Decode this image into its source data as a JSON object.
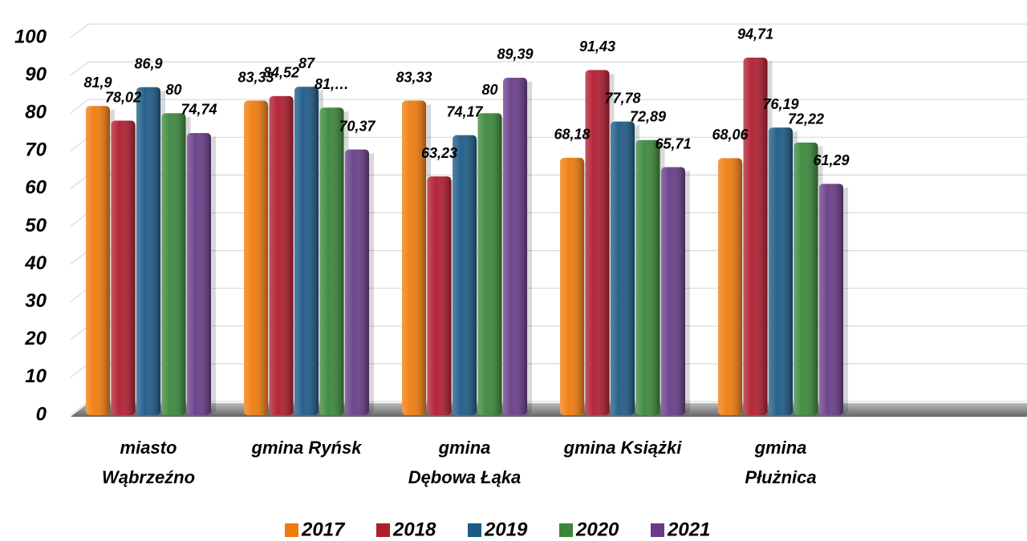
{
  "chart_data": {
    "type": "bar",
    "categories": [
      [
        "miasto",
        "Wąbrzeźno"
      ],
      [
        "gmina Ryńsk"
      ],
      [
        "gmina",
        "Dębowa Łąka"
      ],
      [
        "gmina Książki"
      ],
      [
        "gmina",
        "Płużnica"
      ]
    ],
    "series": [
      {
        "name": "2017",
        "color": "#f07b0c",
        "values": [
          81.9,
          83.33,
          83.33,
          68.18,
          68.06
        ],
        "value_labels": [
          "81,9",
          "83,33",
          "83,33",
          "68,18",
          "68,06"
        ]
      },
      {
        "name": "2018",
        "color": "#b01c2e",
        "values": [
          78.02,
          84.52,
          63.23,
          91.43,
          94.71
        ],
        "value_labels": [
          "78,02",
          "84,52",
          "63,23",
          "91,43",
          "94,71"
        ]
      },
      {
        "name": "2019",
        "color": "#1d5a86",
        "values": [
          86.9,
          87,
          74.17,
          77.78,
          76.19
        ],
        "value_labels": [
          "86,9",
          "87",
          "74,17",
          "77,78",
          "76,19"
        ]
      },
      {
        "name": "2020",
        "color": "#3a873a",
        "values": [
          80,
          81.48,
          80,
          72.89,
          72.22
        ],
        "value_labels": [
          "80",
          "81,…",
          "80",
          "72,89",
          "72,22"
        ]
      },
      {
        "name": "2021",
        "color": "#673c88",
        "values": [
          74.74,
          70.37,
          89.39,
          65.71,
          61.29
        ],
        "value_labels": [
          "74,74",
          "70,37",
          "89,39",
          "65,71",
          "61,29"
        ]
      }
    ],
    "ylim": [
      0,
      100
    ],
    "yticks": [
      0,
      10,
      20,
      30,
      40,
      50,
      60,
      70,
      80,
      90,
      100
    ],
    "grid": true,
    "legend": "bottom"
  }
}
